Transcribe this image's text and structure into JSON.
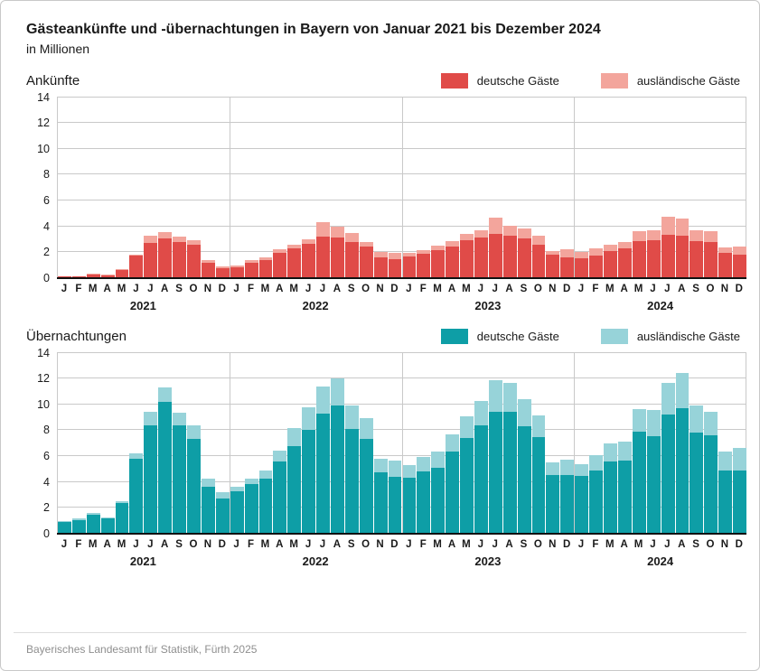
{
  "title": "Gästeankünfte und -übernachtungen in Bayern von Januar 2021 bis Dezember 2024",
  "subtitle": "in Millionen",
  "footer": "Bayerisches Landesamt für Statistik, Fürth 2025",
  "colors": {
    "grid": "#c9c9c9",
    "axis": "#111111",
    "arrivals_domestic": "#e04b48",
    "arrivals_foreign": "#f3a59c",
    "overnight_domestic": "#0e9ea6",
    "overnight_foreign": "#97d3d9"
  },
  "chart_data": [
    {
      "type": "bar",
      "stacked": true,
      "title": "Ankünfte",
      "unit": "Millionen",
      "ylim": [
        0,
        14
      ],
      "yticks": [
        0,
        2,
        4,
        6,
        8,
        10,
        12,
        14
      ],
      "grid": true,
      "legend_position": "top-right",
      "years": [
        "2021",
        "2022",
        "2023",
        "2024"
      ],
      "month_letters": [
        "J",
        "F",
        "M",
        "A",
        "M",
        "J",
        "J",
        "A",
        "S",
        "O",
        "N",
        "D"
      ],
      "legend": [
        {
          "label": "deutsche Gäste",
          "color": "#e04b48"
        },
        {
          "label": "ausländische Gäste",
          "color": "#f3a59c"
        }
      ],
      "series": [
        {
          "name": "deutsche Gäste",
          "values": [
            0.1,
            0.13,
            0.28,
            0.22,
            0.62,
            1.7,
            2.7,
            3.05,
            2.75,
            2.55,
            1.2,
            0.75,
            0.85,
            1.2,
            1.4,
            1.95,
            2.3,
            2.65,
            3.2,
            3.1,
            2.8,
            2.4,
            1.6,
            1.45,
            1.65,
            1.85,
            2.15,
            2.4,
            2.9,
            3.15,
            3.4,
            3.3,
            3.05,
            2.55,
            1.8,
            1.6,
            1.55,
            1.7,
            2.05,
            2.3,
            2.85,
            2.9,
            3.35,
            3.25,
            2.85,
            2.8,
            1.95,
            1.8
          ]
        },
        {
          "name": "ausländische Gäste",
          "values": [
            0.02,
            0.02,
            0.04,
            0.03,
            0.06,
            0.1,
            0.55,
            0.5,
            0.45,
            0.4,
            0.2,
            0.12,
            0.12,
            0.15,
            0.2,
            0.25,
            0.3,
            0.35,
            1.1,
            0.9,
            0.7,
            0.35,
            0.4,
            0.5,
            0.3,
            0.3,
            0.35,
            0.45,
            0.5,
            0.55,
            1.25,
            0.75,
            0.75,
            0.7,
            0.3,
            0.6,
            0.45,
            0.6,
            0.55,
            0.5,
            0.75,
            0.8,
            1.4,
            1.35,
            0.85,
            0.8,
            0.4,
            0.65
          ]
        }
      ]
    },
    {
      "type": "bar",
      "stacked": true,
      "title": "Übernachtungen",
      "unit": "Millionen",
      "ylim": [
        0,
        14
      ],
      "yticks": [
        0,
        2,
        4,
        6,
        8,
        10,
        12,
        14
      ],
      "grid": true,
      "legend_position": "top-right",
      "years": [
        "2021",
        "2022",
        "2023",
        "2024"
      ],
      "month_letters": [
        "J",
        "F",
        "M",
        "A",
        "M",
        "J",
        "J",
        "A",
        "S",
        "O",
        "N",
        "D"
      ],
      "legend": [
        {
          "label": "deutsche Gäste",
          "color": "#0e9ea6"
        },
        {
          "label": "ausländische Gäste",
          "color": "#97d3d9"
        }
      ],
      "series": [
        {
          "name": "deutsche Gäste",
          "values": [
            0.9,
            1.05,
            1.45,
            1.15,
            2.35,
            5.8,
            8.4,
            10.2,
            8.35,
            7.35,
            3.6,
            2.7,
            3.3,
            3.8,
            4.25,
            5.55,
            6.8,
            8.05,
            9.3,
            9.9,
            8.1,
            7.3,
            4.75,
            4.4,
            4.3,
            4.8,
            5.1,
            6.35,
            7.4,
            8.4,
            9.4,
            9.45,
            8.3,
            7.5,
            4.55,
            4.5,
            4.45,
            4.9,
            5.6,
            5.65,
            7.9,
            7.55,
            9.25,
            9.7,
            7.85,
            7.6,
            4.9,
            4.9
          ]
        },
        {
          "name": "ausländische Gäste",
          "values": [
            0.08,
            0.1,
            0.15,
            0.12,
            0.15,
            0.4,
            1.0,
            1.1,
            1.0,
            1.05,
            0.65,
            0.5,
            0.35,
            0.45,
            0.65,
            0.85,
            1.4,
            1.7,
            2.1,
            2.1,
            1.8,
            1.65,
            1.05,
            1.25,
            1.0,
            1.1,
            1.25,
            1.35,
            1.7,
            1.9,
            2.5,
            2.2,
            2.1,
            1.65,
            0.95,
            1.2,
            0.95,
            1.2,
            1.4,
            1.45,
            1.75,
            2.05,
            2.4,
            2.75,
            2.1,
            1.8,
            1.45,
            1.75
          ]
        }
      ]
    }
  ]
}
